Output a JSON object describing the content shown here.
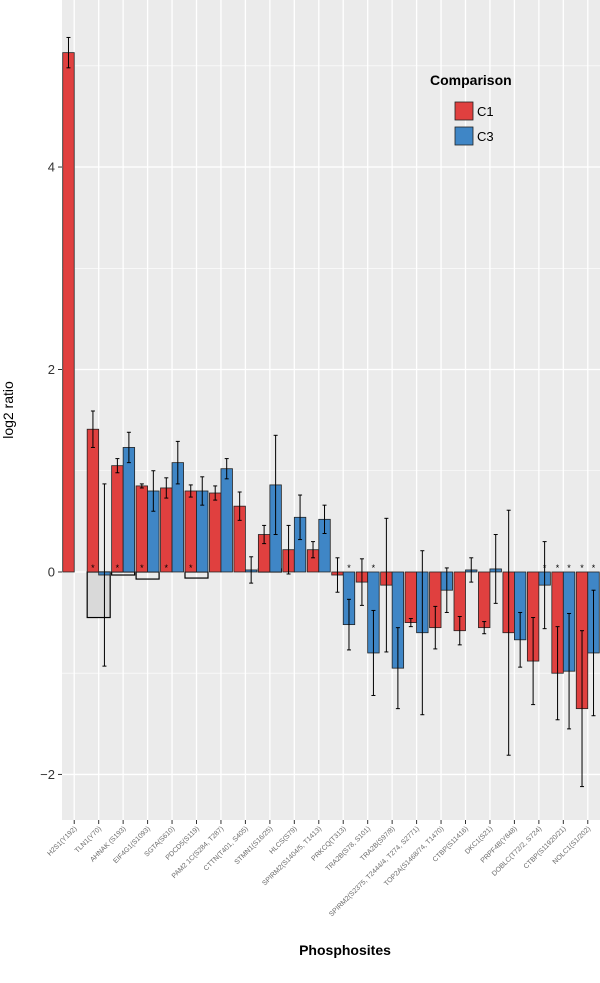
{
  "colors": {
    "panel": "#ebebeb",
    "grid": "#ffffff",
    "C1": "#e0403f",
    "C3": "#3f86c6",
    "star": "#000000"
  },
  "chart_data": {
    "type": "bar",
    "xlabel": "Phosphosites",
    "ylabel": "log2 ratio",
    "ylim": [
      -2.45,
      5.65
    ],
    "yticks": [
      -2,
      0,
      2,
      4
    ],
    "ytick_labels": [
      "−2",
      "0",
      "2",
      "4"
    ],
    "grid": true,
    "legend": {
      "title": "Comparison",
      "position": "top-right",
      "entries": [
        "C1",
        "C3"
      ]
    },
    "categories": [
      "H2S1(Y192)",
      "TLN1(Y70)",
      "AHNAK (S193)",
      "EIF4G1(S1093)",
      "SGTA(S610)",
      "PDCD5(S119)",
      "PAM2 1C(S284, T287)",
      "CTTN(T401, S405)",
      "STMN1(S16/25)",
      "HLCS(S79)",
      "SPIRM2(S1404/5, T1413)",
      "PRKCQ(T313)",
      "TRA2B(S78, S101)",
      "TRA2B(S97/8)",
      "SPIRM2(S2375, T2444/4, T274, S2771)",
      "TOP2A(S1468/74, T1470)",
      "CTBP(S11416)",
      "DKC1(S21)",
      "PRPF4B(Y848)",
      "DOBLC(T72/2, S724)",
      "CTBP(S11920/21)",
      "NOLC1(S1/202)"
    ],
    "series": [
      {
        "name": "C1",
        "values": [
          5.13,
          1.41,
          1.05,
          0.85,
          0.83,
          0.8,
          0.78,
          0.65,
          0.37,
          0.22,
          0.22,
          -0.03,
          -0.1,
          -0.13,
          -0.5,
          -0.55,
          -0.58,
          -0.55,
          -0.6,
          -0.88,
          -1.0,
          -1.35
        ],
        "errors": [
          0.15,
          0.18,
          0.07,
          0.02,
          0.1,
          0.06,
          0.07,
          0.14,
          0.09,
          0.24,
          0.08,
          0.17,
          0.23,
          0.66,
          0.04,
          0.21,
          0.14,
          0.06,
          1.21,
          0.43,
          0.46,
          0.77
        ],
        "significant": [
          false,
          false,
          false,
          false,
          false,
          false,
          false,
          false,
          false,
          false,
          false,
          false,
          false,
          false,
          false,
          false,
          false,
          false,
          false,
          false,
          true,
          true
        ]
      },
      {
        "name": "C3",
        "values": [
          null,
          -0.03,
          1.23,
          0.8,
          1.08,
          0.8,
          1.02,
          0.02,
          0.86,
          0.54,
          0.52,
          -0.52,
          -0.8,
          -0.95,
          -0.6,
          -0.18,
          0.02,
          0.03,
          -0.67,
          -0.13,
          -0.98,
          -0.8
        ],
        "errors": [
          0,
          0.9,
          0.15,
          0.2,
          0.21,
          0.14,
          0.1,
          0.13,
          0.49,
          0.22,
          0.14,
          0.25,
          0.42,
          0.4,
          0.81,
          0.22,
          0.12,
          0.34,
          0.27,
          0.43,
          0.57,
          0.62
        ],
        "significant": [
          false,
          false,
          false,
          false,
          false,
          false,
          false,
          false,
          false,
          false,
          false,
          true,
          true,
          false,
          false,
          false,
          false,
          false,
          false,
          true,
          true,
          true
        ]
      }
    ],
    "unshaded_bars": [
      {
        "category": "TLN1(Y70)",
        "value": -0.45
      },
      {
        "category": "AHNAK (S193)",
        "value": -0.03
      },
      {
        "category": "EIF4G1(S1093)",
        "value": -0.07
      },
      {
        "category": "PDCD5(S119)",
        "value": -0.06
      },
      {
        "category": "STMN1(S16/25)",
        "value": 0.03
      }
    ],
    "base_stars": [
      1,
      2,
      3,
      4,
      5
    ],
    "significance_marker": "*"
  }
}
